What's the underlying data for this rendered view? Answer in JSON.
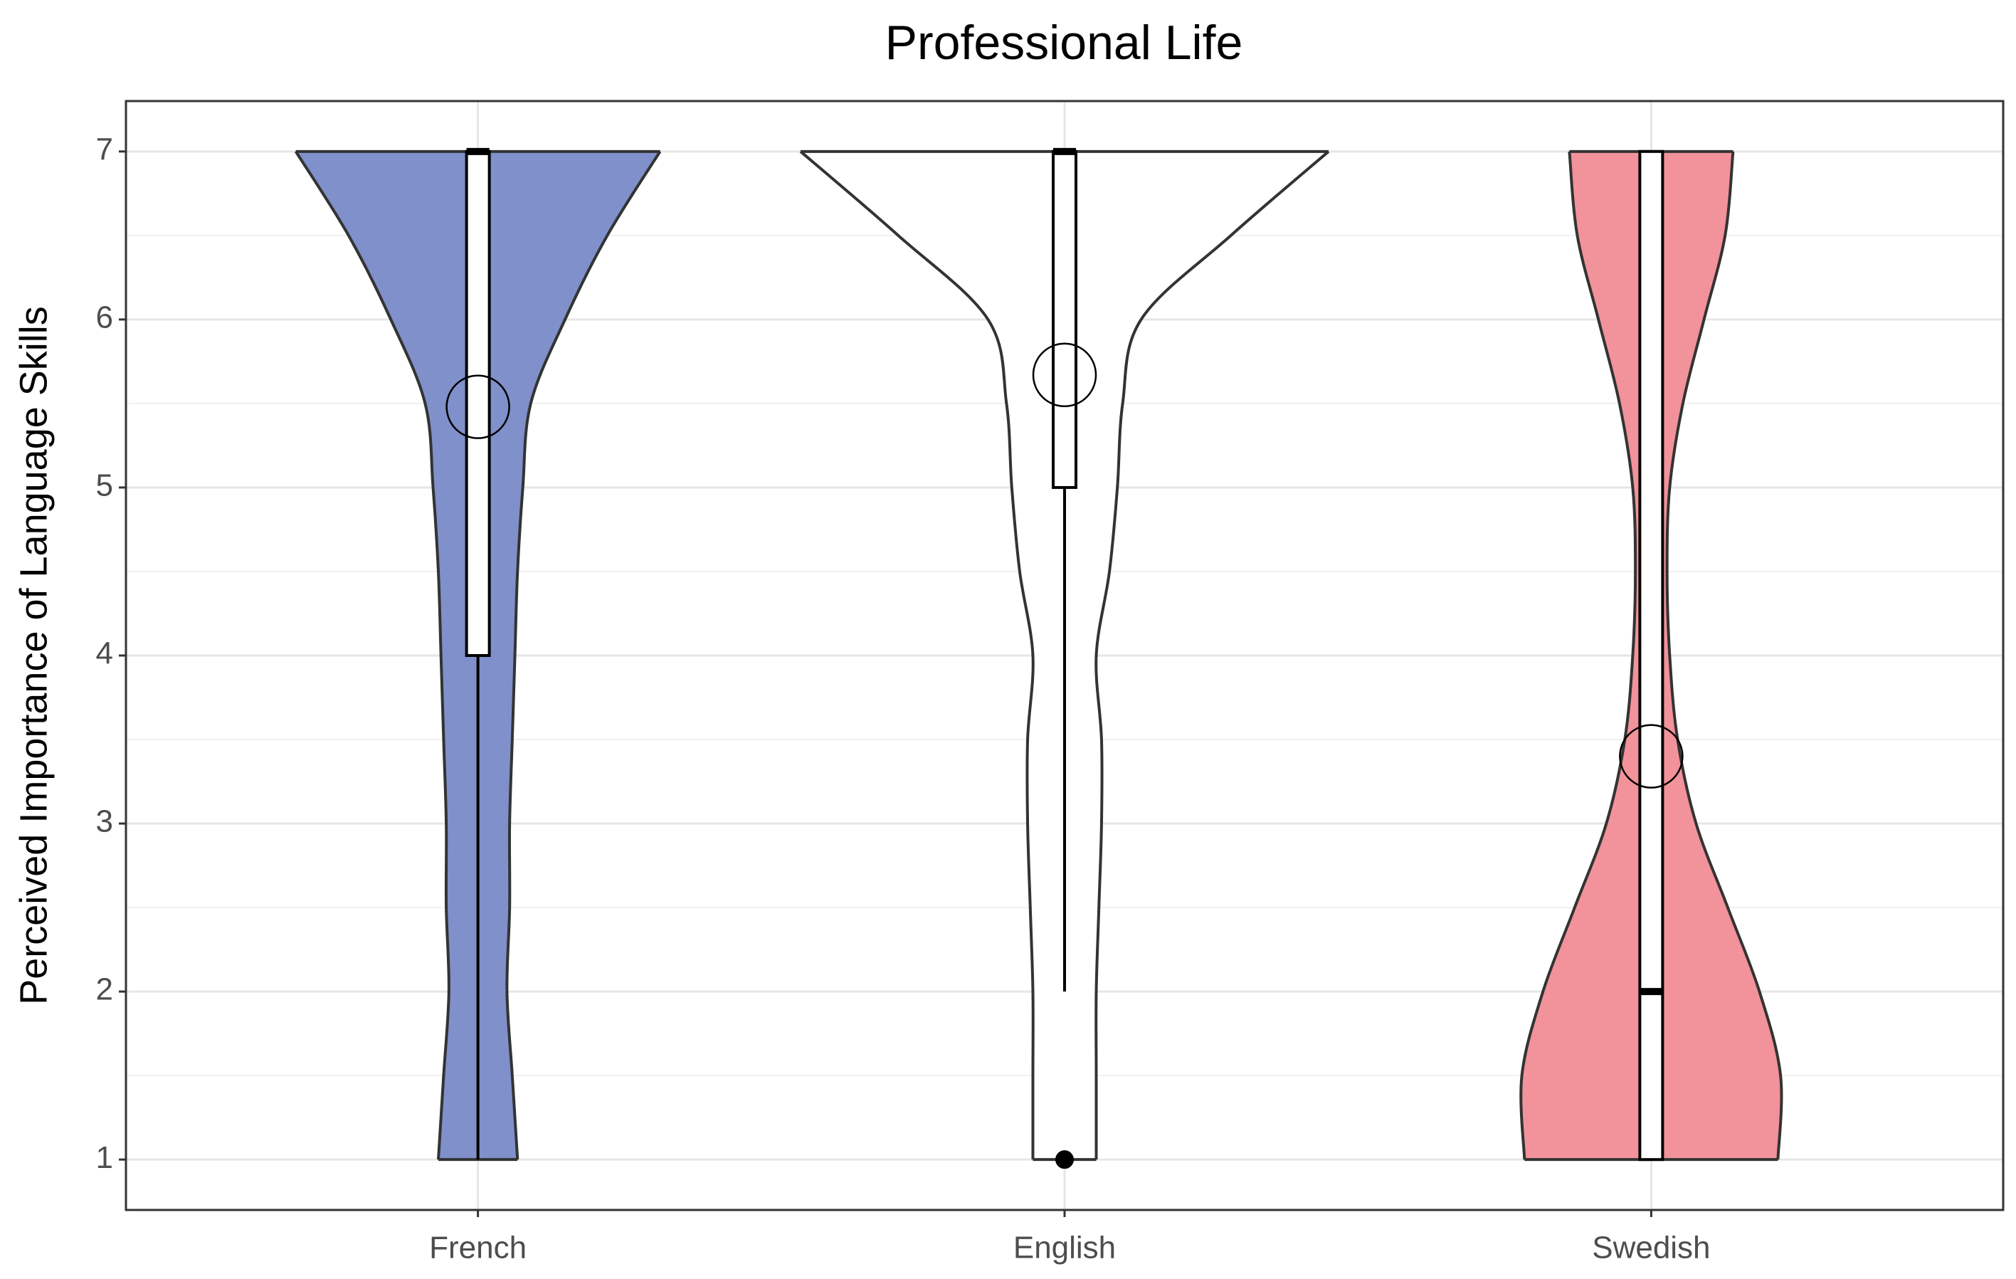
{
  "chart_data": {
    "type": "violin",
    "title": "Professional Life",
    "y_label": "Perceived Importance of Language Skills",
    "categories": [
      "French",
      "English",
      "Swedish"
    ],
    "ylim": [
      0.7,
      7.3
    ],
    "yticks": [
      1,
      2,
      3,
      4,
      5,
      6,
      7
    ],
    "grid": true,
    "density_y": [
      1,
      1.5,
      2,
      2.5,
      3,
      3.5,
      4,
      4.5,
      5,
      5.5,
      6,
      6.5,
      7
    ],
    "series": [
      {
        "name": "French",
        "color": "#7f90ca",
        "widths": [
          0.15,
          0.13,
          0.11,
          0.12,
          0.12,
          0.13,
          0.14,
          0.15,
          0.17,
          0.2,
          0.33,
          0.49,
          0.69
        ],
        "whisker_low": 1,
        "q1": 4,
        "median": 7,
        "q3": 7,
        "whisker_high": 7,
        "mean": 5.48,
        "outliers": []
      },
      {
        "name": "English",
        "color": "#ffffff",
        "widths": [
          0.12,
          0.12,
          0.12,
          0.13,
          0.14,
          0.14,
          0.12,
          0.17,
          0.2,
          0.22,
          0.29,
          0.63,
          1
        ],
        "whisker_low": 2,
        "q1": 5,
        "median": 7,
        "q3": 7,
        "whisker_high": 7,
        "mean": 5.67,
        "outliers": [
          1
        ]
      },
      {
        "name": "Swedish",
        "color": "#f2929a",
        "widths": [
          0.48,
          0.49,
          0.41,
          0.29,
          0.17,
          0.1,
          0.07,
          0.06,
          0.07,
          0.12,
          0.2,
          0.28,
          0.31
        ],
        "whisker_low": 1,
        "q1": 1,
        "median": 2,
        "q3": 7,
        "whisker_high": 7,
        "mean": 3.4,
        "outliers": []
      }
    ]
  }
}
